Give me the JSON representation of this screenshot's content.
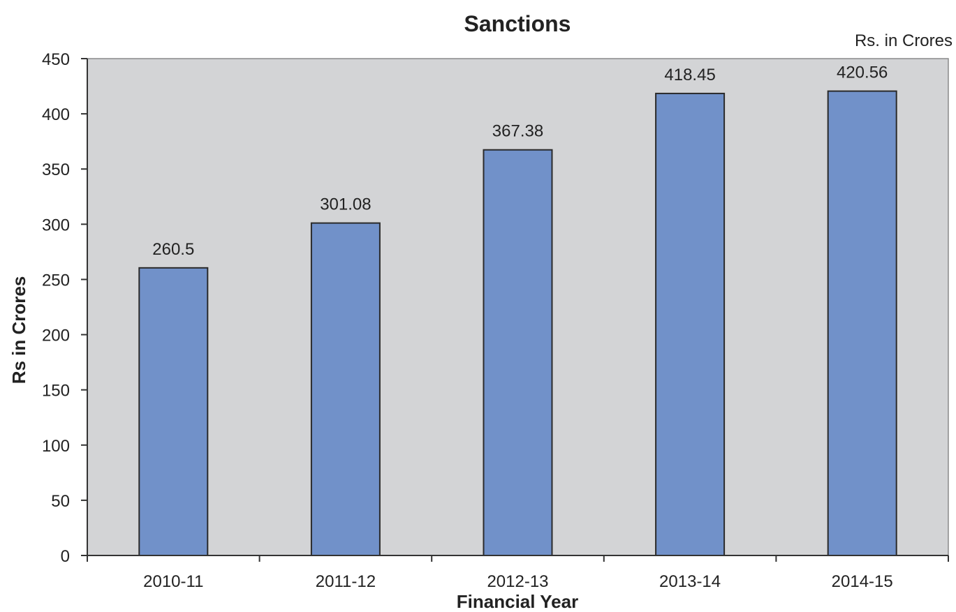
{
  "chart_data": {
    "type": "bar",
    "title": "Sanctions",
    "unit_note": "Rs. in Crores",
    "xlabel": "Financial Year",
    "ylabel": "Rs in Crores",
    "categories": [
      "2010-11",
      "2011-12",
      "2012-13",
      "2013-14",
      "2014-15"
    ],
    "values": [
      260.5,
      301.08,
      367.38,
      418.45,
      420.56
    ],
    "data_labels": [
      "260.5",
      "301.08",
      "367.38",
      "418.45",
      "420.56"
    ],
    "ylim": [
      0,
      450
    ],
    "yticks": [
      0,
      50,
      100,
      150,
      200,
      250,
      300,
      350,
      400,
      450
    ],
    "grid": false,
    "legend": "none",
    "colors": {
      "plot_background": "#d3d4d6",
      "bar_fill": "#7191c9",
      "bar_stroke": "#2a2a2a",
      "axis": "#333333"
    }
  }
}
